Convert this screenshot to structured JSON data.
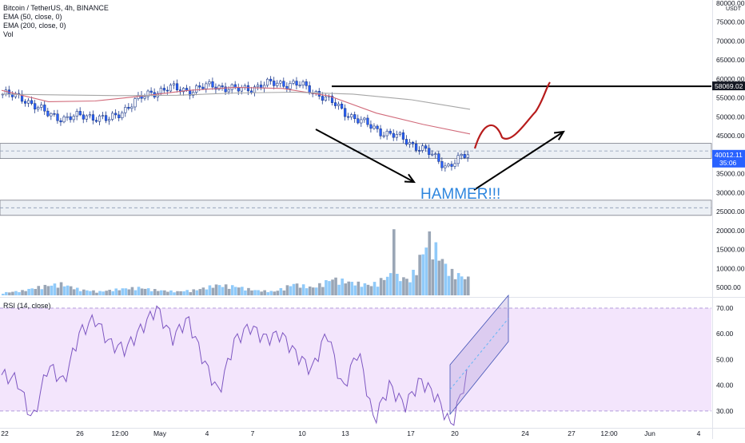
{
  "chart_data": {
    "type": "candlestick",
    "title": "Bitcoin / TetherUS, 4h, BINANCE",
    "indicators": [
      "EMA (50, close, 0)",
      "EMA (200, close, 0)",
      "Vol"
    ],
    "rsi_label": "RSI (14, close)",
    "price_axis": {
      "unit": "USDT",
      "ticks": [
        {
          "v": 80000,
          "label": "80000.00"
        },
        {
          "v": 75000,
          "label": "75000.00"
        },
        {
          "v": 70000,
          "label": "70000.00"
        },
        {
          "v": 65000,
          "label": "65000.00"
        },
        {
          "v": 60000,
          "label": "60000.00"
        },
        {
          "v": 55000,
          "label": "55000.00"
        },
        {
          "v": 50000,
          "label": "50000.00"
        },
        {
          "v": 45000,
          "label": "45000.00"
        },
        {
          "v": 35000,
          "label": "35000.00"
        },
        {
          "v": 30000,
          "label": "30000.00"
        },
        {
          "v": 25000,
          "label": "25000.00"
        },
        {
          "v": 20000,
          "label": "20000.00"
        },
        {
          "v": 15000,
          "label": "15000.00"
        },
        {
          "v": 10000,
          "label": "10000.00"
        },
        {
          "v": 5000,
          "label": "5000.00"
        }
      ],
      "price_tags": [
        {
          "v": 58069.02,
          "label": "58069.02",
          "style": "dark"
        },
        {
          "v": 40012.11,
          "label": "40012.11",
          "sub": "35:06",
          "style": "blue"
        }
      ]
    },
    "rsi_axis": {
      "ticks": [
        {
          "v": 70,
          "label": "70.00"
        },
        {
          "v": 60,
          "label": "60.00"
        },
        {
          "v": 50,
          "label": "50.00"
        },
        {
          "v": 40,
          "label": "40.00"
        },
        {
          "v": 30,
          "label": "30.00"
        }
      ],
      "band": [
        30,
        70
      ]
    },
    "x_ticks": [
      "22",
      "26",
      "12:00",
      "May",
      "4",
      "7",
      "10",
      "13",
      "17",
      "20",
      "24",
      "27",
      "12:00",
      "Jun",
      "4"
    ],
    "price_series_sample": [
      56000,
      55000,
      51000,
      49500,
      50500,
      49000,
      53000,
      56500,
      57500,
      57000,
      58500,
      57000,
      58000,
      59000,
      58500,
      56000,
      52000,
      48500,
      46000,
      44000,
      41000,
      37000,
      40000
    ],
    "ema50_sample": [
      57000,
      54000,
      54200,
      55500,
      57000,
      57800,
      57500,
      55500,
      51000,
      48000,
      45500
    ],
    "ema200_sample": [
      56000,
      55800,
      55600,
      55700,
      56300,
      56500,
      56000,
      54500,
      52000
    ],
    "rsi_series_sample": [
      44,
      42,
      26,
      48,
      41,
      60,
      66,
      56,
      54,
      62,
      70,
      58,
      66,
      50,
      37,
      57,
      63,
      58,
      60,
      52,
      46,
      61,
      38,
      54,
      26,
      40,
      32,
      42,
      36,
      24,
      44
    ],
    "volume_sample": [
      1000,
      1800,
      3500,
      4500,
      2200,
      1500,
      2500,
      3000,
      2000,
      1500,
      2200,
      4000,
      3500,
      2000,
      1500,
      4500,
      3000,
      6500,
      5000,
      4000,
      8000,
      6000,
      22500,
      9500,
      6500
    ],
    "annotations": {
      "hammer_text": "HAMMER!!!",
      "resistance_level": 58069.02,
      "support_zones": [
        [
          39000,
          43000
        ],
        [
          24000,
          28000
        ]
      ]
    }
  }
}
